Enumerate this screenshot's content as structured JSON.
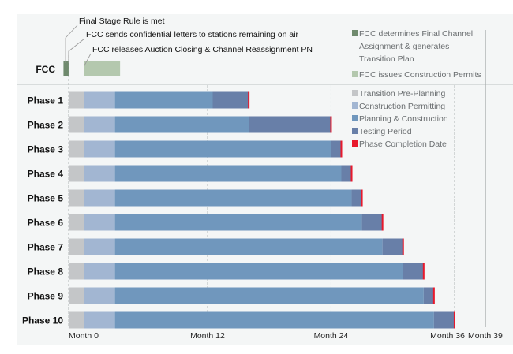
{
  "chart_data": {
    "type": "gantt",
    "x_unit": "month",
    "xlim": [
      -1.5,
      39
    ],
    "x_ticks": [
      {
        "value": 0,
        "label": "Month 0"
      },
      {
        "value": 12,
        "label": "Month 12"
      },
      {
        "value": 24,
        "label": "Month 24"
      },
      {
        "value": 36,
        "label": "Month 36"
      },
      {
        "value": 39,
        "label": "Month 39"
      }
    ],
    "fcc_row": {
      "label": "FCC",
      "segments": [
        {
          "series": "FCC determines Final Channel Assignment & generates Transition Plan",
          "start": -2,
          "end": -1.5
        },
        {
          "series": "FCC issues Construction Permits",
          "start": 0,
          "end": 3.5
        }
      ],
      "annotations": [
        {
          "text": "Final Stage Rule is met",
          "month": -1.8
        },
        {
          "text": "FCC sends confidential letters to stations remaining on air",
          "month": -1.5
        },
        {
          "text": "FCC releases Auction Closing & Channel Reassignment PN",
          "month": 0
        }
      ]
    },
    "series": [
      {
        "name": "FCC determines Final Channel Assignment & generates Transition Plan",
        "color": "#6f8a6d",
        "legend_lines": [
          "FCC determines Final Channel",
          "Assignment & generates",
          "Transition Plan"
        ]
      },
      {
        "name": "FCC issues Construction Permits",
        "color": "#b4c8ae"
      },
      {
        "name": "Transition Pre-Planning",
        "color": "#c4c6c8"
      },
      {
        "name": "Construction Permitting",
        "color": "#a2b6d2"
      },
      {
        "name": "Planning & Construction",
        "color": "#7097bd"
      },
      {
        "name": "Testing Period",
        "color": "#687fa8"
      },
      {
        "name": "Phase Completion Date",
        "color": "#e8192c"
      }
    ],
    "phases": [
      {
        "label": "Phase 1",
        "pre_planning": [
          -1.5,
          0
        ],
        "permitting": [
          0,
          3
        ],
        "construction": [
          3,
          12.5
        ],
        "testing": [
          12.5,
          16
        ],
        "completion": 16
      },
      {
        "label": "Phase 2",
        "pre_planning": [
          -1.5,
          0
        ],
        "permitting": [
          0,
          3
        ],
        "construction": [
          3,
          16
        ],
        "testing": [
          16,
          24
        ],
        "completion": 24
      },
      {
        "label": "Phase 3",
        "pre_planning": [
          -1.5,
          0
        ],
        "permitting": [
          0,
          3
        ],
        "construction": [
          3,
          24
        ],
        "testing": [
          24,
          25
        ],
        "completion": 25
      },
      {
        "label": "Phase 4",
        "pre_planning": [
          -1.5,
          0
        ],
        "permitting": [
          0,
          3
        ],
        "construction": [
          3,
          25
        ],
        "testing": [
          25,
          26
        ],
        "completion": 26
      },
      {
        "label": "Phase 5",
        "pre_planning": [
          -1.5,
          0
        ],
        "permitting": [
          0,
          3
        ],
        "construction": [
          3,
          26
        ],
        "testing": [
          26,
          27
        ],
        "completion": 27
      },
      {
        "label": "Phase 6",
        "pre_planning": [
          -1.5,
          0
        ],
        "permitting": [
          0,
          3
        ],
        "construction": [
          3,
          27
        ],
        "testing": [
          27,
          29
        ],
        "completion": 29
      },
      {
        "label": "Phase 7",
        "pre_planning": [
          -1.5,
          0
        ],
        "permitting": [
          0,
          3
        ],
        "construction": [
          3,
          29
        ],
        "testing": [
          29,
          31
        ],
        "completion": 31
      },
      {
        "label": "Phase 8",
        "pre_planning": [
          -1.5,
          0
        ],
        "permitting": [
          0,
          3
        ],
        "construction": [
          3,
          31
        ],
        "testing": [
          31,
          33
        ],
        "completion": 33
      },
      {
        "label": "Phase 9",
        "pre_planning": [
          -1.5,
          0
        ],
        "permitting": [
          0,
          3
        ],
        "construction": [
          3,
          33
        ],
        "testing": [
          33,
          34
        ],
        "completion": 34
      },
      {
        "label": "Phase 10",
        "pre_planning": [
          -1.5,
          0
        ],
        "permitting": [
          0,
          3
        ],
        "construction": [
          3,
          34
        ],
        "testing": [
          34,
          36
        ],
        "completion": 36
      }
    ],
    "legend_position": "right",
    "grid": "dashed vertical at month ticks"
  }
}
